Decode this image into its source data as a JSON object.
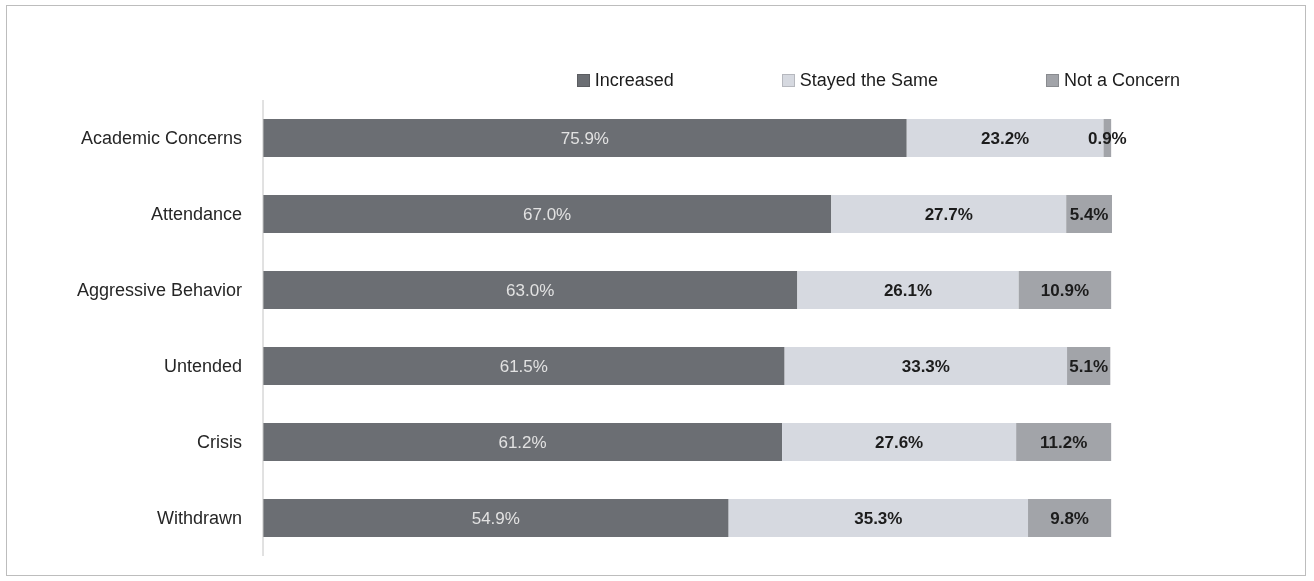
{
  "chart_data": {
    "type": "bar",
    "orientation": "horizontal",
    "stacked": true,
    "categories": [
      "Academic Concerns",
      "Attendance",
      "Aggressive Behavior",
      "Untended",
      "Crisis",
      "Withdrawn"
    ],
    "series": [
      {
        "name": "Increased",
        "color": "#6b6e73",
        "values": [
          75.9,
          67.0,
          63.0,
          61.5,
          61.2,
          54.9
        ],
        "value_labels": [
          "75.9%",
          "67.0%",
          "63.0%",
          "61.5%",
          "61.2%",
          "54.9%"
        ]
      },
      {
        "name": "Stayed the Same",
        "color": "#d6d9e0",
        "values": [
          23.2,
          27.7,
          26.1,
          33.3,
          27.6,
          35.3
        ],
        "value_labels": [
          "23.2%",
          "27.7%",
          "26.1%",
          "33.3%",
          "27.6%",
          "35.3%"
        ]
      },
      {
        "name": "Not a Concern",
        "color": "#a2a4a9",
        "values": [
          0.9,
          5.4,
          10.9,
          5.1,
          11.2,
          9.8
        ],
        "value_labels": [
          "0.9%",
          "5.4%",
          "10.9%",
          "5.1%",
          "11.2%",
          "9.8%"
        ]
      }
    ],
    "legend": "top right",
    "tick_labels": "y"
  }
}
